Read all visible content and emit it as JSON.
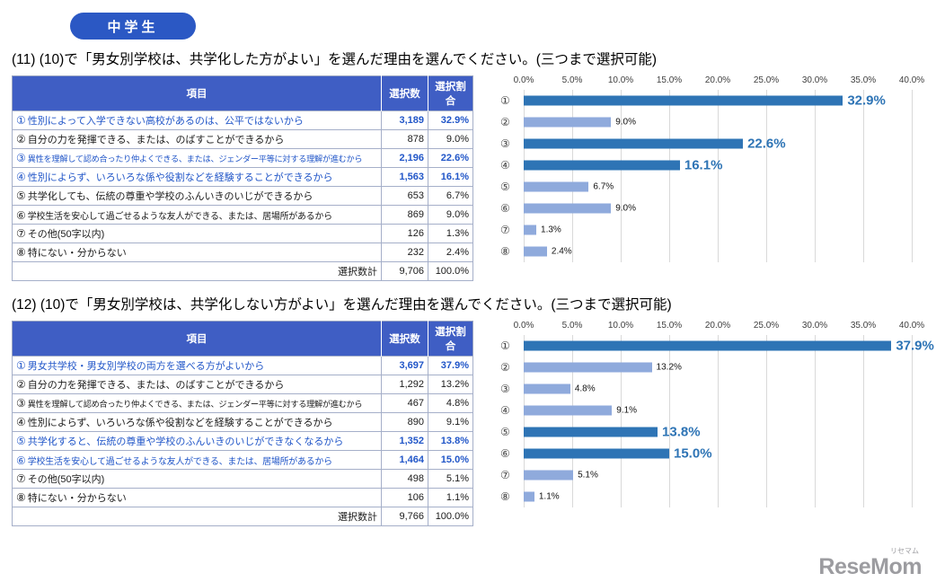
{
  "badge": {
    "label": "中学生"
  },
  "colors": {
    "badge_bg": "#2b58c4",
    "table_header_bg": "#3f5ec4",
    "highlight_text": "#2156c8",
    "bar_highlight": "#2e74b5",
    "bar_normal": "#8faadc",
    "gridline": "#d9d9d9"
  },
  "sections": [
    {
      "title": "(11) (10)で「男女別学校は、共学化した方がよい」を選んだ理由を選んでください。(三つまで選択可能)",
      "table": {
        "headers": [
          "項目",
          "選択数",
          "選択割合"
        ],
        "rows": [
          {
            "num": "①",
            "label": "性別によって入学できない高校があるのは、公平ではないから",
            "count": "3,189",
            "pct": "32.9%",
            "highlight": true
          },
          {
            "num": "②",
            "label": "自分の力を発揮できる、または、のばすことができるから",
            "count": "878",
            "pct": "9.0%",
            "highlight": false
          },
          {
            "num": "③",
            "label": "異性を理解して認め合ったり仲よくできる、または、ジェンダー平等に対する理解が進むから",
            "count": "2,196",
            "pct": "22.6%",
            "highlight": true
          },
          {
            "num": "④",
            "label": "性別によらず、いろいろな係や役割などを経験することができるから",
            "count": "1,563",
            "pct": "16.1%",
            "highlight": true
          },
          {
            "num": "⑤",
            "label": "共学化しても、伝統の尊重や学校のふんいきのいじができるから",
            "count": "653",
            "pct": "6.7%",
            "highlight": false
          },
          {
            "num": "⑥",
            "label": "学校生活を安心して過ごせるような友人ができる、または、居場所があるから",
            "count": "869",
            "pct": "9.0%",
            "highlight": false
          },
          {
            "num": "⑦",
            "label": "その他(50字以内)",
            "count": "126",
            "pct": "1.3%",
            "highlight": false
          },
          {
            "num": "⑧",
            "label": "特にない・分からない",
            "count": "232",
            "pct": "2.4%",
            "highlight": false
          }
        ],
        "total_label": "選択数計",
        "total_count": "9,706",
        "total_pct": "100.0%"
      }
    },
    {
      "title": "(12) (10)で「男女別学校は、共学化しない方がよい」を選んだ理由を選んでください。(三つまで選択可能)",
      "table": {
        "headers": [
          "項目",
          "選択数",
          "選択割合"
        ],
        "rows": [
          {
            "num": "①",
            "label": "男女共学校・男女別学校の両方を選べる方がよいから",
            "count": "3,697",
            "pct": "37.9%",
            "highlight": true
          },
          {
            "num": "②",
            "label": "自分の力を発揮できる、または、のばすことができるから",
            "count": "1,292",
            "pct": "13.2%",
            "highlight": false
          },
          {
            "num": "③",
            "label": "異性を理解して認め合ったり仲よくできる、または、ジェンダー平等に対する理解が進むから",
            "count": "467",
            "pct": "4.8%",
            "highlight": false
          },
          {
            "num": "④",
            "label": "性別によらず、いろいろな係や役割などを経験することができるから",
            "count": "890",
            "pct": "9.1%",
            "highlight": false
          },
          {
            "num": "⑤",
            "label": "共学化すると、伝統の尊重や学校のふんいきのいじができなくなるから",
            "count": "1,352",
            "pct": "13.8%",
            "highlight": true
          },
          {
            "num": "⑥",
            "label": "学校生活を安心して過ごせるような友人ができる、または、居場所があるから",
            "count": "1,464",
            "pct": "15.0%",
            "highlight": true
          },
          {
            "num": "⑦",
            "label": "その他(50字以内)",
            "count": "498",
            "pct": "5.1%",
            "highlight": false
          },
          {
            "num": "⑧",
            "label": "特にない・分からない",
            "count": "106",
            "pct": "1.1%",
            "highlight": false
          }
        ],
        "total_label": "選択数計",
        "total_count": "9,766",
        "total_pct": "100.0%"
      }
    }
  ],
  "chart_data": [
    {
      "type": "bar",
      "orientation": "horizontal",
      "title": "(11) (10)で「男女別学校は、共学化した方がよい」を選んだ理由",
      "categories": [
        "①",
        "②",
        "③",
        "④",
        "⑤",
        "⑥",
        "⑦",
        "⑧"
      ],
      "values": [
        32.9,
        9.0,
        22.6,
        16.1,
        6.7,
        9.0,
        1.3,
        2.4
      ],
      "highlighted": [
        true,
        false,
        true,
        true,
        false,
        false,
        false,
        false
      ],
      "xlim": [
        0,
        40
      ],
      "tick_labels": [
        "0.0%",
        "5.0%",
        "10.0%",
        "15.0%",
        "20.0%",
        "25.0%",
        "30.0%",
        "35.0%",
        "40.0%"
      ],
      "grid": true,
      "legend": false,
      "xlabel": "",
      "ylabel": ""
    },
    {
      "type": "bar",
      "orientation": "horizontal",
      "title": "(12) (10)で「男女別学校は、共学化しない方がよい」を選んだ理由",
      "categories": [
        "①",
        "②",
        "③",
        "④",
        "⑤",
        "⑥",
        "⑦",
        "⑧"
      ],
      "values": [
        37.9,
        13.2,
        4.8,
        9.1,
        13.8,
        15.0,
        5.1,
        1.1
      ],
      "highlighted": [
        true,
        false,
        false,
        false,
        true,
        true,
        false,
        false
      ],
      "xlim": [
        0,
        40
      ],
      "tick_labels": [
        "0.0%",
        "5.0%",
        "10.0%",
        "15.0%",
        "20.0%",
        "25.0%",
        "30.0%",
        "35.0%",
        "40.0%"
      ],
      "grid": true,
      "legend": false,
      "xlabel": "",
      "ylabel": ""
    }
  ],
  "logo": {
    "kana": "リセマム",
    "text": "ReseMom"
  }
}
